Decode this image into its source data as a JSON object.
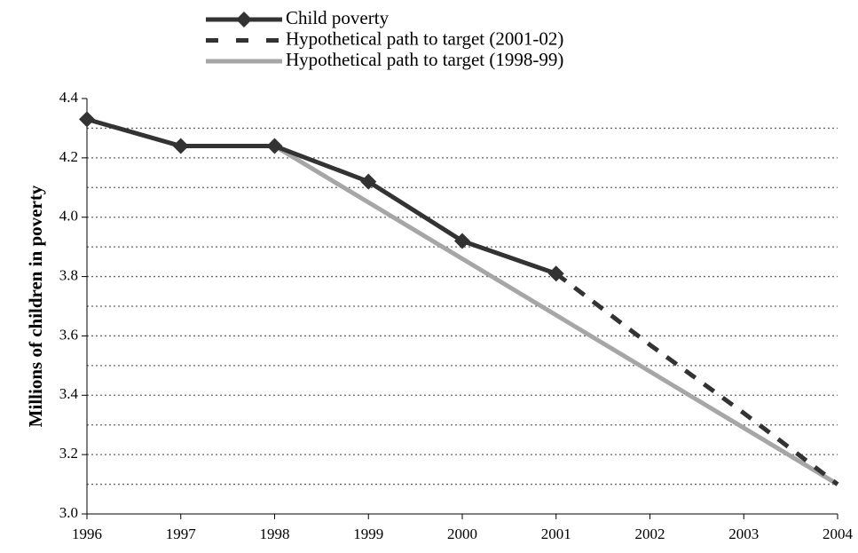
{
  "chart_data": {
    "type": "line",
    "y_label": "Millions of children in poverty",
    "x": [
      1996,
      1997,
      1998,
      1999,
      2000,
      2001,
      2002,
      2003,
      2004
    ],
    "series": [
      {
        "name": "Child poverty",
        "color": "#333333",
        "style": "solid",
        "marker": "diamond",
        "values": [
          4.33,
          4.24,
          4.24,
          4.12,
          3.92,
          3.81,
          null,
          null,
          null
        ]
      },
      {
        "name": "Hypothetical path to target (2001-02)",
        "color": "#333333",
        "style": "dashed",
        "marker": "none",
        "values": [
          null,
          null,
          null,
          null,
          null,
          3.81,
          3.57,
          3.34,
          3.1
        ]
      },
      {
        "name": "Hypothetical path to target (1998-99)",
        "color": "#a6a6a6",
        "style": "solid",
        "marker": "none",
        "values": [
          null,
          null,
          4.24,
          4.05,
          3.86,
          3.67,
          3.48,
          3.29,
          3.1
        ]
      }
    ],
    "xlim": [
      1996,
      2004
    ],
    "xticks": [
      1996,
      1997,
      1998,
      1999,
      2000,
      2001,
      2002,
      2003,
      2004
    ],
    "ylim": [
      3.0,
      4.4
    ],
    "yticks": [
      {
        "value": 3.0,
        "label": "3.0"
      },
      3.2,
      3.4,
      3.6,
      3.8,
      {
        "value": 4.0,
        "label": "4.0"
      },
      4.2,
      4.4
    ],
    "grid_lines": [
      3.1,
      3.2,
      3.3,
      3.4,
      3.5,
      3.6,
      3.7,
      3.8,
      3.9,
      4.0,
      4.1,
      4.2,
      4.3
    ],
    "grid": true,
    "legend": "top"
  }
}
